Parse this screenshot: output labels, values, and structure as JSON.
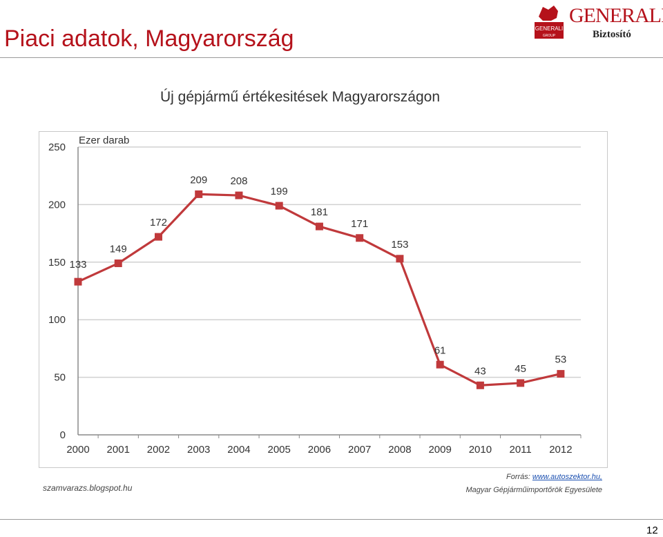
{
  "slide": {
    "title": "Piaci adatok, Magyarország",
    "page_number": "12"
  },
  "logo": {
    "brand": "GENERALI",
    "subtitle": "Biztosító",
    "badge_text": "GENERALI",
    "badge_sub": "GROUP"
  },
  "colors": {
    "title": "#b5121b",
    "series": "#c0393b",
    "grid": "#d0d0d0",
    "axis_text": "#333333"
  },
  "chart_data": {
    "type": "line",
    "title": "Új gépjármű értékesitések Magyarországon",
    "ylabel": "Ezer darab",
    "xlabel": "",
    "ylim": [
      0,
      250
    ],
    "yticks": [
      0,
      50,
      100,
      150,
      200,
      250
    ],
    "categories": [
      "2000",
      "2001",
      "2002",
      "2003",
      "2004",
      "2005",
      "2006",
      "2007",
      "2008",
      "2009",
      "2010",
      "2011",
      "2012"
    ],
    "series": [
      {
        "values": [
          133,
          149,
          172,
          209,
          208,
          199,
          181,
          171,
          153,
          61,
          43,
          45,
          53
        ]
      }
    ],
    "grid": true,
    "legend": "none",
    "marker": "square"
  },
  "sources": {
    "left": "szamvarazs.blogspot.hu",
    "right_prefix": "Forrás: ",
    "right_link": "www.autoszektor.hu,",
    "right_line2": "Magyar Gépjárműimportőrök Egyesülete"
  }
}
